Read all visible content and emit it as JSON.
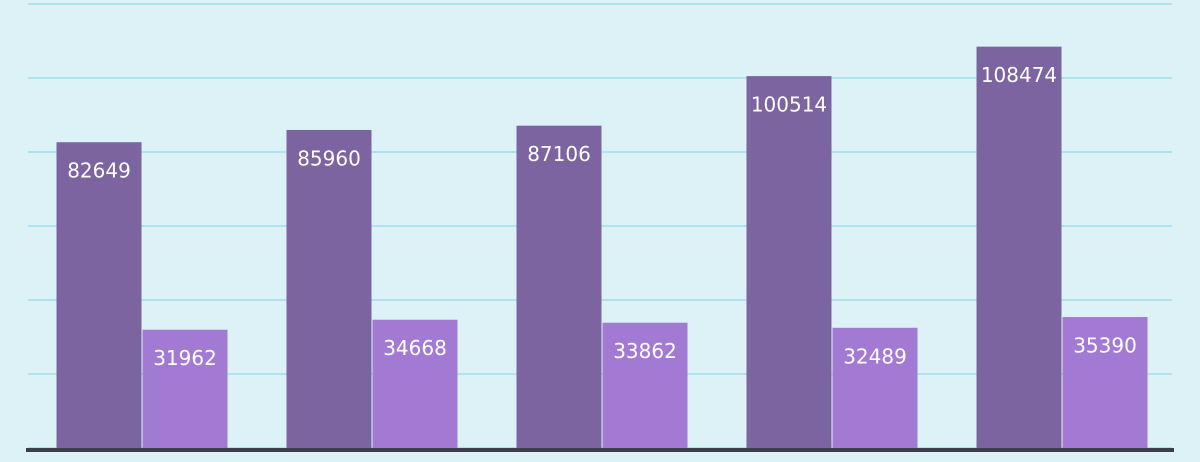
{
  "chart_data": {
    "type": "bar",
    "categories": [
      null,
      null,
      null,
      null,
      null
    ],
    "series": [
      {
        "color": "#7b64a0",
        "values": [
          82649,
          85960,
          87106,
          100514,
          108474
        ]
      },
      {
        "color": "#a27ad4",
        "values": [
          31962,
          34668,
          33862,
          32489,
          35390
        ]
      }
    ],
    "ylim": [
      0,
      120000
    ],
    "yticks": [
      0,
      20000,
      40000,
      60000,
      80000,
      100000,
      120000
    ],
    "grid": true
  }
}
